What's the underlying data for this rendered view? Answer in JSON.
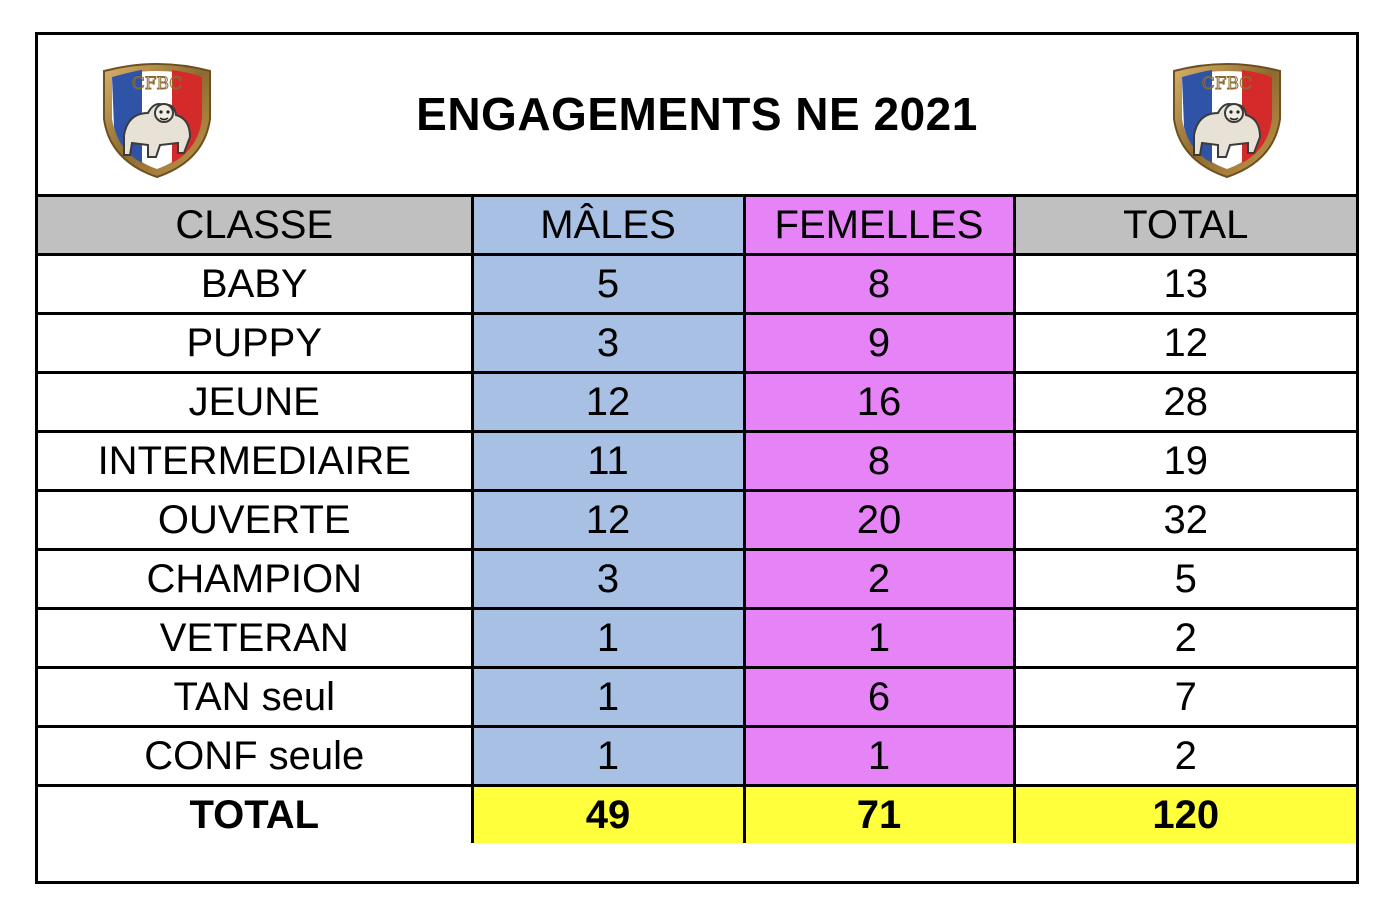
{
  "title": "ENGAGEMENTS NE 2021",
  "logo_text": "CFBC",
  "colors": {
    "header_gray": "#c0c0c0",
    "males_blue": "#a7c0e4",
    "femelles_pink": "#e583f7",
    "total_yellow": "#ffff3b"
  },
  "columns": {
    "classe": "CLASSE",
    "males": "MÂLES",
    "femelles": "FEMELLES",
    "total": "TOTAL"
  },
  "rows": [
    {
      "classe": "BABY",
      "males": "5",
      "femelles": "8",
      "total": "13"
    },
    {
      "classe": "PUPPY",
      "males": "3",
      "femelles": "9",
      "total": "12"
    },
    {
      "classe": "JEUNE",
      "males": "12",
      "femelles": "16",
      "total": "28"
    },
    {
      "classe": "INTERMEDIAIRE",
      "males": "11",
      "femelles": "8",
      "total": "19"
    },
    {
      "classe": "OUVERTE",
      "males": "12",
      "femelles": "20",
      "total": "32"
    },
    {
      "classe": "CHAMPION",
      "males": "3",
      "femelles": "2",
      "total": "5"
    },
    {
      "classe": "VETERAN",
      "males": "1",
      "femelles": "1",
      "total": "2"
    },
    {
      "classe": "TAN seul",
      "males": "1",
      "femelles": "6",
      "total": "7"
    },
    {
      "classe": "CONF seule",
      "males": "1",
      "femelles": "1",
      "total": "2"
    }
  ],
  "totals": {
    "label": "TOTAL",
    "males": "49",
    "femelles": "71",
    "total": "120"
  }
}
